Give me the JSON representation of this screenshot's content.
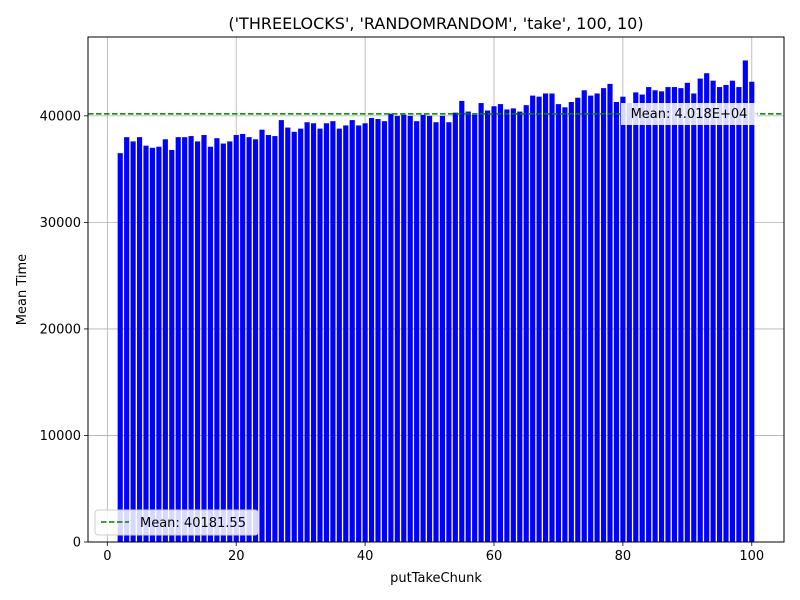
{
  "chart_data": {
    "type": "bar",
    "title": "('THREELOCKS', 'RANDOMRANDOM', 'take', 100, 10)",
    "xlabel": "putTakeChunk",
    "ylabel": "Mean Time",
    "xlim": [
      -3,
      105
    ],
    "ylim": [
      0,
      47400
    ],
    "xticks": [
      {
        "value": 0,
        "label": "0"
      },
      {
        "value": 20,
        "label": "20"
      },
      {
        "value": 40,
        "label": "40"
      },
      {
        "value": 60,
        "label": "60"
      },
      {
        "value": 80,
        "label": "80"
      },
      {
        "value": 100,
        "label": "100"
      }
    ],
    "yticks": [
      {
        "value": 0,
        "label": "0"
      },
      {
        "value": 10000,
        "label": "10000"
      },
      {
        "value": 20000,
        "label": "20000"
      },
      {
        "value": 30000,
        "label": "30000"
      },
      {
        "value": 40000,
        "label": "40000"
      }
    ],
    "grid": true,
    "bar_color": "#0000ff",
    "mean_line_color": "#008000",
    "mean_value": 40181.55,
    "legend": {
      "position": "lower-left",
      "entries": [
        "Mean: 40181.55"
      ]
    },
    "annotation": {
      "text": "Mean: 4.018E+04",
      "position": "right"
    },
    "x": [
      2,
      3,
      4,
      5,
      6,
      7,
      8,
      9,
      10,
      11,
      12,
      13,
      14,
      15,
      16,
      17,
      18,
      19,
      20,
      21,
      22,
      23,
      24,
      25,
      26,
      27,
      28,
      29,
      30,
      31,
      32,
      33,
      34,
      35,
      36,
      37,
      38,
      39,
      40,
      41,
      42,
      43,
      44,
      45,
      46,
      47,
      48,
      49,
      50,
      51,
      52,
      53,
      54,
      55,
      56,
      57,
      58,
      59,
      60,
      61,
      62,
      63,
      64,
      65,
      66,
      67,
      68,
      69,
      70,
      71,
      72,
      73,
      74,
      75,
      76,
      77,
      78,
      79,
      80,
      81,
      82,
      83,
      84,
      85,
      86,
      87,
      88,
      89,
      90,
      91,
      92,
      93,
      94,
      95,
      96,
      97,
      98,
      99,
      100
    ],
    "values": [
      36500,
      38000,
      37600,
      38000,
      37200,
      37000,
      37100,
      37800,
      36800,
      38000,
      38000,
      38100,
      37600,
      38200,
      37100,
      37900,
      37400,
      37600,
      38200,
      38300,
      38000,
      37800,
      38700,
      38200,
      38100,
      39600,
      38900,
      38500,
      38800,
      39400,
      39300,
      38800,
      39300,
      39500,
      38800,
      39100,
      39600,
      39100,
      39300,
      39800,
      39700,
      39500,
      40200,
      40000,
      40100,
      40000,
      39500,
      40100,
      40000,
      39400,
      40000,
      39400,
      40300,
      41400,
      40400,
      40100,
      41200,
      40500,
      40900,
      41100,
      40600,
      40700,
      40400,
      41000,
      41900,
      41800,
      42100,
      42100,
      41100,
      40800,
      41300,
      41700,
      42400,
      41900,
      42100,
      42600,
      43000,
      41300,
      41800,
      41200,
      42200,
      42000,
      42700,
      42400,
      42300,
      42700,
      42700,
      42600,
      43100,
      42100,
      43500,
      44000,
      43300,
      42700,
      42900,
      43300,
      42700,
      45200,
      43200
    ]
  }
}
